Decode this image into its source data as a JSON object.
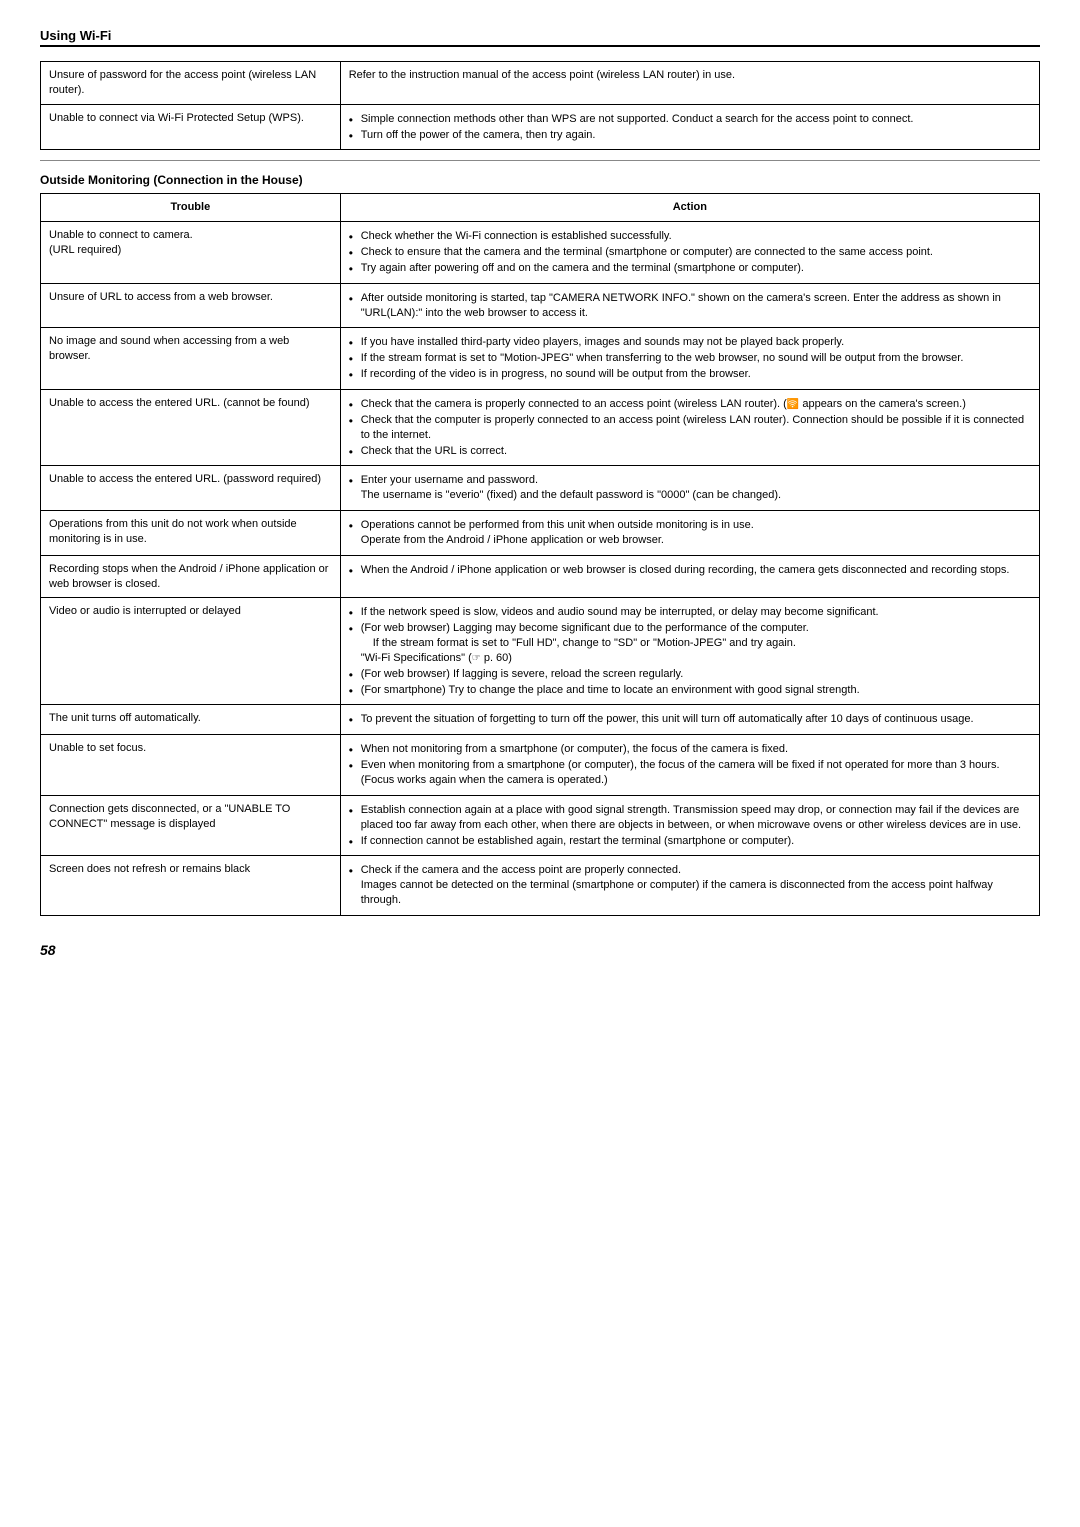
{
  "header": {
    "title": "Using Wi-Fi"
  },
  "table1": {
    "rows": [
      {
        "trouble": "Unsure of password for the access point (wireless LAN router).",
        "action_plain": "Refer to the instruction manual of the access point (wireless LAN router) in use."
      },
      {
        "trouble": "Unable to connect via Wi-Fi Protected Setup (WPS).",
        "action_items": [
          "Simple connection methods other than WPS are not supported. Conduct a search for the access point to connect.",
          "Turn off the power of the camera, then try again."
        ]
      }
    ]
  },
  "subheading": "Outside Monitoring (Connection in the House)",
  "table2": {
    "headers": {
      "trouble": "Trouble",
      "action": "Action"
    },
    "rows": [
      {
        "trouble": "Unable to connect to camera.\n(URL required)",
        "action_items": [
          "Check whether the Wi-Fi connection is established successfully.",
          "Check to ensure that the camera and the terminal (smartphone or computer) are connected to the same access point.",
          "Try again after powering off and on the camera and the terminal (smartphone or computer)."
        ]
      },
      {
        "trouble": "Unsure of URL to access from a web browser.",
        "action_items": [
          "After outside monitoring is started, tap \"CAMERA NETWORK INFO.\" shown on the camera's screen. Enter the address as shown in \"URL(LAN):\" into the web browser to access it."
        ]
      },
      {
        "trouble": "No image and sound when accessing from a web browser.",
        "action_items": [
          "If you have installed third-party video players, images and sounds may not be played back properly.",
          "If the stream format is set to \"Motion-JPEG\" when transferring to the web browser, no sound will be output from the browser.",
          "If recording of the video is in progress, no sound will be output from the browser."
        ]
      },
      {
        "trouble": "Unable to access the entered URL. (cannot be found)",
        "action_html_items": [
          "Check that the camera is properly connected to an access point (wireless LAN router). (<span class=\"wifi-icon\">&#x1F6DC;</span> appears on the camera's screen.)",
          "Check that the computer is properly connected to an access point (wireless LAN router). Connection should be possible if it is connected to the internet.",
          "Check that the URL is correct."
        ]
      },
      {
        "trouble": "Unable to access the entered URL. (password required)",
        "action_items": [
          "Enter your username and password.\nThe username is \"everio\" (fixed) and the default password is \"0000\" (can be changed)."
        ]
      },
      {
        "trouble": "Operations from this unit do not work when outside monitoring is in use.",
        "action_items": [
          "Operations cannot be performed from this unit when outside monitoring is in use.\nOperate from the Android / iPhone application or web browser."
        ]
      },
      {
        "trouble": "Recording stops when the Android / iPhone application or web browser is closed.",
        "action_items": [
          "When the Android / iPhone application or web browser is closed during recording, the camera gets disconnected and recording stops."
        ]
      },
      {
        "trouble": "Video or audio is interrupted or delayed",
        "action_html_items": [
          "If the network speed is slow, videos and audio sound may be interrupted, or delay may become significant.",
          "(For web browser) Lagging may become significant due to the performance of the computer.<span class=\"sub\">If the stream format is set to \"Full HD\", change to \"SD\" or \"Motion-JPEG\" and try again.</span><span class=\"sub\" style=\"padding-left:0\">\"Wi-Fi Specifications\" (<span class=\"ref-icon\">☞</span> p. 60)</span>",
          "(For web browser) If lagging is severe, reload the screen regularly.",
          "(For smartphone) Try to change the place and time to locate an environment with good signal strength."
        ]
      },
      {
        "trouble": "The unit turns off automatically.",
        "action_items": [
          "To prevent the situation of forgetting to turn off the power, this unit will turn off automatically after 10 days of continuous usage."
        ]
      },
      {
        "trouble": "Unable to set focus.",
        "action_items": [
          "When not monitoring from a smartphone (or computer), the focus of the camera is fixed.",
          "Even when monitoring from a smartphone (or computer), the focus of the camera will be fixed if not operated for more than 3 hours. (Focus works again when the camera is operated.)"
        ]
      },
      {
        "trouble": "Connection gets disconnected, or a \"UNABLE TO CONNECT\" message is displayed",
        "action_items": [
          "Establish connection again at a place with good signal strength. Transmission speed may drop, or connection may fail if the devices are placed too far away from each other, when there are objects in between, or when microwave ovens or other wireless devices are in use.",
          "If connection cannot be established again, restart the terminal (smartphone or computer)."
        ]
      },
      {
        "trouble": "Screen does not refresh or remains black",
        "action_items": [
          "Check if the camera and the access point are properly connected.\nImages cannot be detected on the terminal (smartphone or computer) if the camera is disconnected from the access point halfway through."
        ]
      }
    ]
  },
  "pagenum": "58"
}
